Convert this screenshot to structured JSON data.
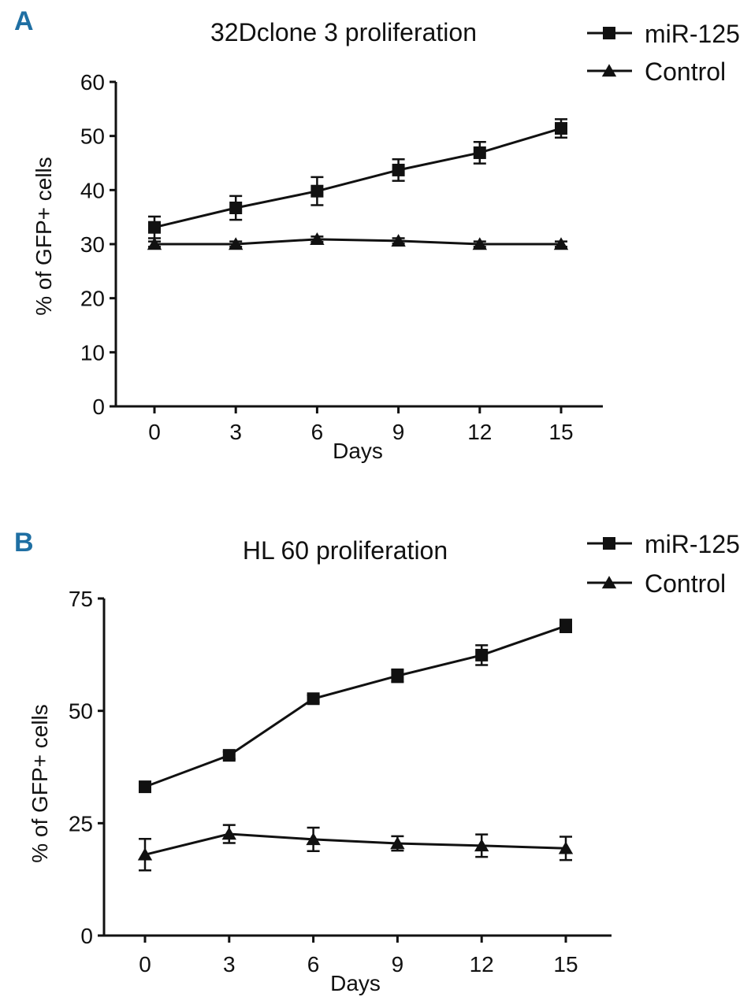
{
  "chart_data": [
    {
      "type": "line",
      "panel": "A",
      "title": "32Dclone 3 proliferation",
      "xlabel": "Days",
      "ylabel": "% of GFP+ cells",
      "x": [
        0,
        3,
        6,
        9,
        12,
        15
      ],
      "xticks": [
        "0",
        "3",
        "6",
        "9",
        "12",
        "15"
      ],
      "yticks": [
        "0",
        "10",
        "20",
        "30",
        "40",
        "50",
        "60"
      ],
      "ylim": [
        0,
        60
      ],
      "xlim": [
        -1.5,
        17.5
      ],
      "legend_position": "top-right",
      "series": [
        {
          "name": "miR-125",
          "marker": "square",
          "values": [
            33.1,
            36.7,
            39.8,
            43.7,
            46.9,
            51.4
          ],
          "errors": [
            2,
            2.2,
            2.6,
            2,
            2,
            1.7
          ]
        },
        {
          "name": "Control",
          "marker": "triangle",
          "values": [
            30,
            30,
            30.9,
            30.6,
            30,
            30
          ],
          "errors": [
            0.5,
            0.5,
            0.5,
            0.5,
            0.5,
            0.5
          ]
        }
      ]
    },
    {
      "type": "line",
      "panel": "B",
      "title": "HL 60 proliferation",
      "xlabel": "Days",
      "ylabel": "% of GFP+ cells",
      "x": [
        0,
        3,
        6,
        9,
        12,
        15
      ],
      "xticks": [
        "0",
        "3",
        "6",
        "9",
        "12",
        "15"
      ],
      "yticks": [
        "0",
        "25",
        "50",
        "75"
      ],
      "ylim": [
        0,
        75
      ],
      "xlim": [
        -1.5,
        16.5
      ],
      "legend_position": "top-right",
      "series": [
        {
          "name": "miR-125",
          "marker": "square",
          "values": [
            33.1,
            40.1,
            52.7,
            57.8,
            62.4,
            68.9
          ],
          "errors": [
            0.8,
            0.8,
            0.8,
            1.4,
            2.2,
            1.4
          ]
        },
        {
          "name": "Control",
          "marker": "triangle",
          "values": [
            18.0,
            22.6,
            21.4,
            20.5,
            20.0,
            19.4
          ],
          "errors": [
            3.5,
            2,
            2.6,
            1.6,
            2.5,
            2.6
          ]
        }
      ]
    }
  ]
}
